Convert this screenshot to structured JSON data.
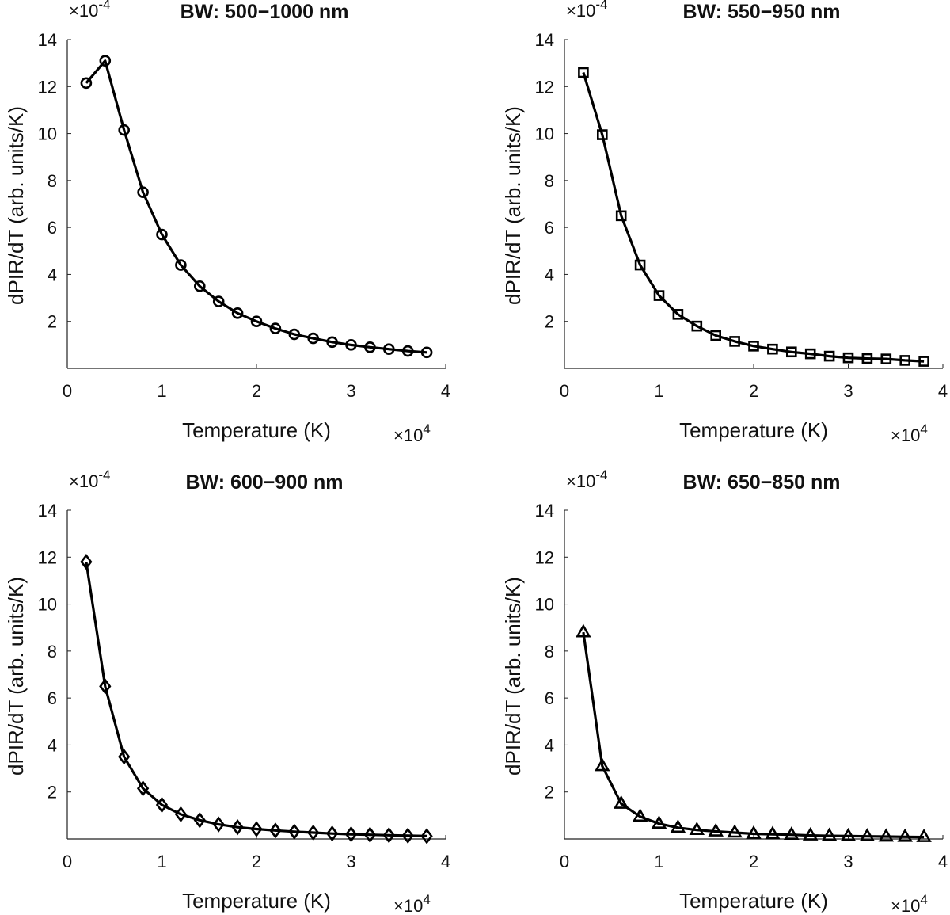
{
  "chart_data": [
    {
      "type": "line",
      "title": "BW: 500−1000 nm",
      "xlabel": "Temperature (K)",
      "ylabel": "dPIR/dT (arb. units/K)",
      "x_multiplier": "×10",
      "x_multiplier_exp": "4",
      "y_multiplier": "×10",
      "y_multiplier_exp": "-4",
      "xlim": [
        0,
        4
      ],
      "ylim": [
        0,
        14
      ],
      "xticks": [
        "0",
        "1",
        "2",
        "3",
        "4"
      ],
      "yticks": [
        "2",
        "4",
        "6",
        "8",
        "10",
        "12",
        "14"
      ],
      "marker": "circle",
      "series": [
        {
          "x": [
            0.2,
            0.4,
            0.6,
            0.8,
            1.0,
            1.2,
            1.4,
            1.6,
            1.8,
            2.0,
            2.2,
            2.4,
            2.6,
            2.8,
            3.0,
            3.2,
            3.4,
            3.6,
            3.8
          ],
          "y": [
            12.15,
            13.1,
            10.15,
            7.5,
            5.7,
            4.4,
            3.5,
            2.85,
            2.35,
            2.0,
            1.7,
            1.45,
            1.28,
            1.12,
            1.0,
            0.9,
            0.82,
            0.74,
            0.68
          ]
        }
      ]
    },
    {
      "type": "line",
      "title": "BW: 550−950 nm",
      "xlabel": "Temperature (K)",
      "ylabel": "dPIR/dT (arb. units/K)",
      "x_multiplier": "×10",
      "x_multiplier_exp": "4",
      "y_multiplier": "×10",
      "y_multiplier_exp": "-4",
      "xlim": [
        0,
        4
      ],
      "ylim": [
        0,
        14
      ],
      "xticks": [
        "0",
        "1",
        "2",
        "3",
        "4"
      ],
      "yticks": [
        "2",
        "4",
        "6",
        "8",
        "10",
        "12",
        "14"
      ],
      "marker": "square",
      "series": [
        {
          "x": [
            0.2,
            0.4,
            0.6,
            0.8,
            1.0,
            1.2,
            1.4,
            1.6,
            1.8,
            2.0,
            2.2,
            2.4,
            2.6,
            2.8,
            3.0,
            3.2,
            3.4,
            3.6,
            3.8
          ],
          "y": [
            12.6,
            9.95,
            6.5,
            4.4,
            3.1,
            2.3,
            1.8,
            1.4,
            1.15,
            0.95,
            0.82,
            0.7,
            0.62,
            0.52,
            0.45,
            0.42,
            0.4,
            0.34,
            0.3
          ]
        }
      ]
    },
    {
      "type": "line",
      "title": "BW: 600−900 nm",
      "xlabel": "Temperature (K)",
      "ylabel": "dPIR/dT (arb. units/K)",
      "x_multiplier": "×10",
      "x_multiplier_exp": "4",
      "y_multiplier": "×10",
      "y_multiplier_exp": "-4",
      "xlim": [
        0,
        4
      ],
      "ylim": [
        0,
        14
      ],
      "xticks": [
        "0",
        "1",
        "2",
        "3",
        "4"
      ],
      "yticks": [
        "2",
        "4",
        "6",
        "8",
        "10",
        "12",
        "14"
      ],
      "marker": "diamond",
      "series": [
        {
          "x": [
            0.2,
            0.4,
            0.6,
            0.8,
            1.0,
            1.2,
            1.4,
            1.6,
            1.8,
            2.0,
            2.2,
            2.4,
            2.6,
            2.8,
            3.0,
            3.2,
            3.4,
            3.6,
            3.8
          ],
          "y": [
            11.8,
            6.5,
            3.5,
            2.15,
            1.45,
            1.05,
            0.8,
            0.62,
            0.5,
            0.42,
            0.36,
            0.31,
            0.27,
            0.23,
            0.2,
            0.18,
            0.16,
            0.14,
            0.12
          ]
        }
      ]
    },
    {
      "type": "line",
      "title": "BW: 650−850 nm",
      "xlabel": "Temperature (K)",
      "ylabel": "dPIR/dT (arb. units/K)",
      "x_multiplier": "×10",
      "x_multiplier_exp": "4",
      "y_multiplier": "×10",
      "y_multiplier_exp": "-4",
      "xlim": [
        0,
        4
      ],
      "ylim": [
        0,
        14
      ],
      "xticks": [
        "0",
        "1",
        "2",
        "3",
        "4"
      ],
      "yticks": [
        "2",
        "4",
        "6",
        "8",
        "10",
        "12",
        "14"
      ],
      "marker": "triangle",
      "series": [
        {
          "x": [
            0.2,
            0.4,
            0.6,
            0.8,
            1.0,
            1.2,
            1.4,
            1.6,
            1.8,
            2.0,
            2.2,
            2.4,
            2.6,
            2.8,
            3.0,
            3.2,
            3.4,
            3.6,
            3.8
          ],
          "y": [
            8.8,
            3.1,
            1.5,
            0.95,
            0.65,
            0.48,
            0.38,
            0.32,
            0.27,
            0.22,
            0.2,
            0.18,
            0.15,
            0.13,
            0.12,
            0.11,
            0.1,
            0.09,
            0.08
          ]
        }
      ]
    }
  ]
}
